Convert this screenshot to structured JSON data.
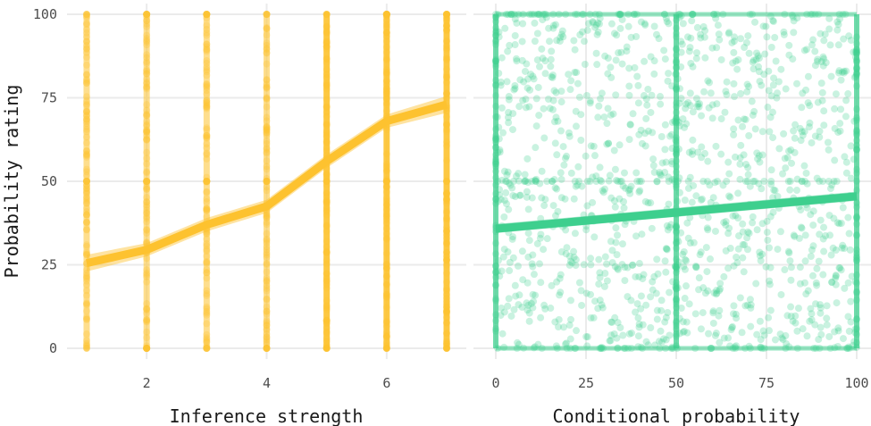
{
  "chart_data": [
    {
      "type": "scatter",
      "xlabel": "Inference strength",
      "ylabel": "Probability rating",
      "x_ticks": [
        2,
        4,
        6
      ],
      "x_tick_labels": [
        "2",
        "4",
        "6"
      ],
      "xlim": [
        0.9,
        7.1
      ],
      "y_ticks": [
        0,
        25,
        50,
        75,
        100
      ],
      "y_tick_labels": [
        "0",
        "25",
        "50",
        "75",
        "100"
      ],
      "ylim": [
        -7,
        103
      ],
      "grid": true,
      "color": "#fdc22f",
      "points_description_x_levels": [
        1,
        2,
        3,
        4,
        5,
        6,
        7
      ],
      "trend": {
        "x": [
          1,
          2,
          3,
          4,
          5,
          6,
          7
        ],
        "y": [
          25.5,
          29.5,
          37,
          42.5,
          56,
          68,
          73
        ],
        "ci_lower": [
          23,
          27.5,
          35,
          40.5,
          54,
          66,
          70.5
        ],
        "ci_upper": [
          28,
          31.5,
          39,
          44.5,
          58,
          70,
          75.5
        ]
      }
    },
    {
      "type": "scatter",
      "xlabel": "Conditional probability",
      "ylabel": "",
      "x_ticks": [
        0,
        25,
        50,
        75,
        100
      ],
      "x_tick_labels": [
        "0",
        "25",
        "50",
        "75",
        "100"
      ],
      "xlim": [
        -1.5,
        101.5
      ],
      "y_ticks": [
        0,
        25,
        50,
        75,
        100
      ],
      "ylim": [
        -7,
        103
      ],
      "grid": true,
      "color": "#3ecf8e",
      "trend": {
        "x": [
          0,
          100
        ],
        "y": [
          35.8,
          45.5
        ],
        "ci_lower": [
          34.5,
          44.2
        ],
        "ci_upper": [
          37.2,
          46.9
        ]
      }
    }
  ]
}
